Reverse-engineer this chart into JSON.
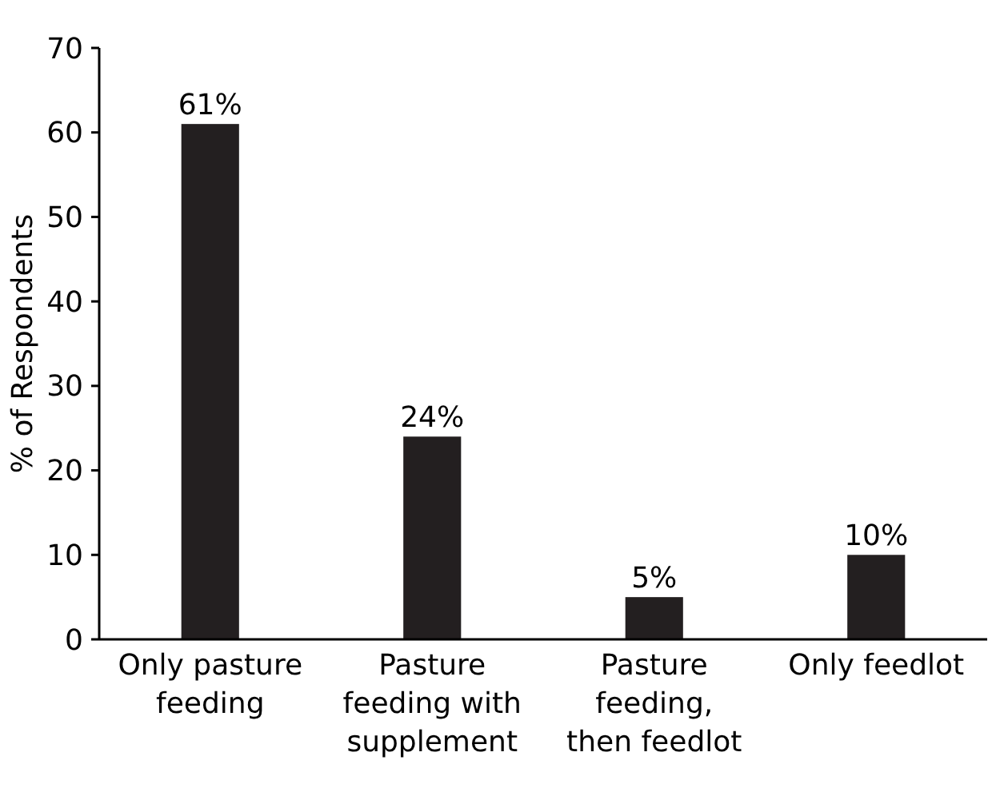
{
  "chart_data": {
    "type": "bar",
    "ylabel": "% of Respondents",
    "categories": [
      "Only pasture feeding",
      "Pasture feeding with supplement",
      "Pasture feeding, then feedlot",
      "Only feedlot"
    ],
    "values": [
      61,
      24,
      5,
      10
    ],
    "value_labels": [
      "61%",
      "24%",
      "5%",
      "10%"
    ],
    "color": "#231f20",
    "ylim": [
      0,
      70
    ],
    "yticks": [
      0,
      10,
      20,
      30,
      40,
      50,
      60,
      70
    ],
    "grid": false
  }
}
